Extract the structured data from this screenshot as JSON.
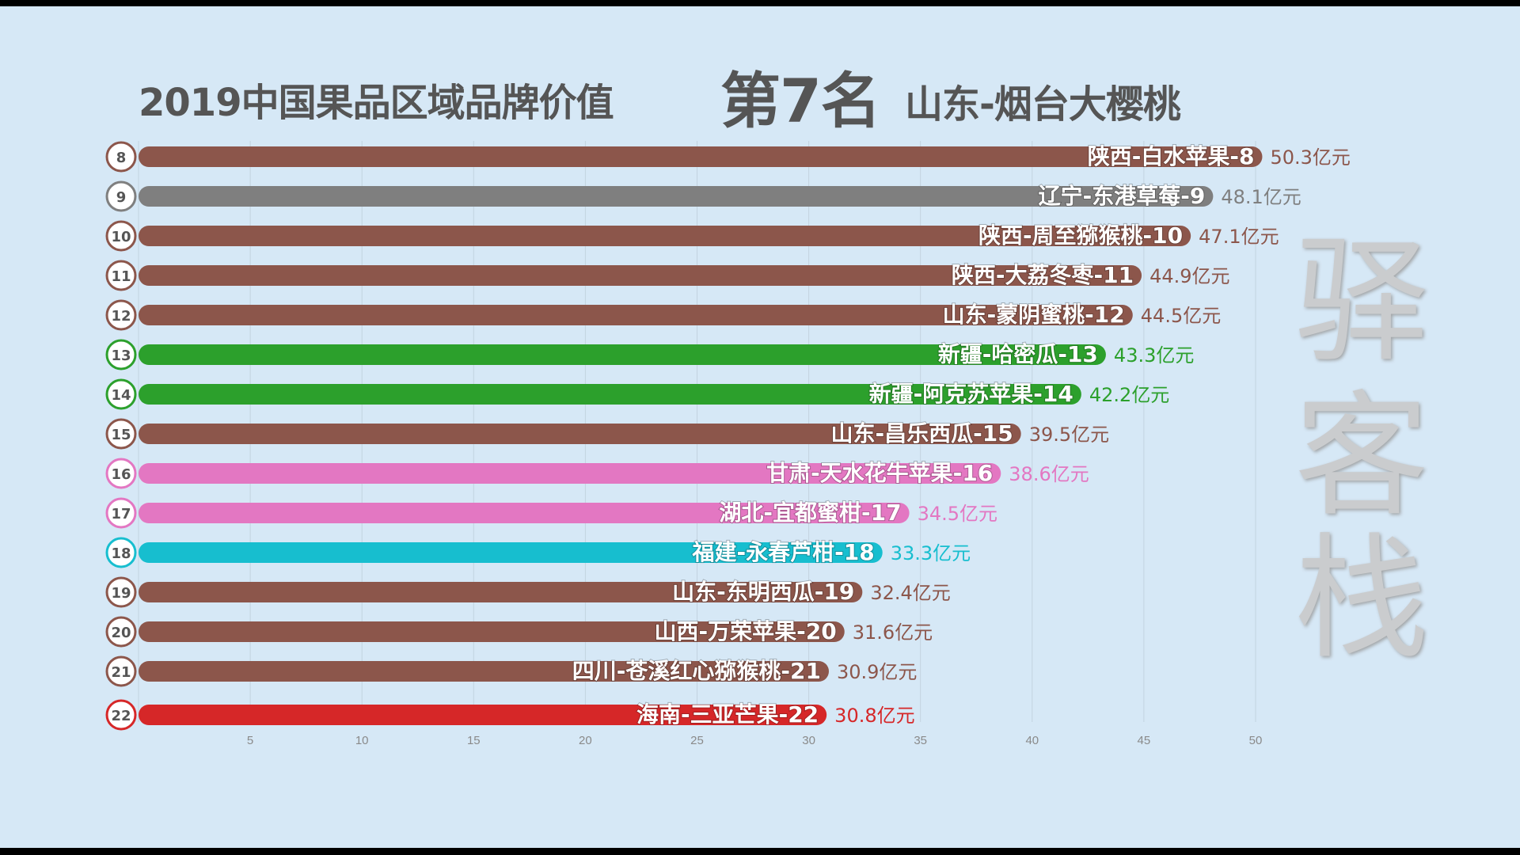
{
  "header": {
    "title": "2019中国果品区域品牌价值",
    "rank_label": "第7名",
    "rank_item": "山东-烟台大樱桃"
  },
  "watermark": [
    "驿",
    "客",
    "栈"
  ],
  "chart_data": {
    "type": "bar",
    "orientation": "horizontal",
    "unit": "亿元",
    "xlim": [
      0,
      52
    ],
    "xticks": [
      5,
      10,
      15,
      20,
      25,
      30,
      35,
      40,
      45,
      50
    ],
    "grid": true,
    "bars": [
      {
        "rank": 8,
        "label": "陕西-白水苹果-8",
        "value": 50.3,
        "value_label": "50.3亿元",
        "color": "#8c564b"
      },
      {
        "rank": 9,
        "label": "辽宁-东港草莓-9",
        "value": 48.1,
        "value_label": "48.1亿元",
        "color": "#7f7f7f"
      },
      {
        "rank": 10,
        "label": "陕西-周至猕猴桃-10",
        "value": 47.1,
        "value_label": "47.1亿元",
        "color": "#8c564b"
      },
      {
        "rank": 11,
        "label": "陕西-大荔冬枣-11",
        "value": 44.9,
        "value_label": "44.9亿元",
        "color": "#8c564b"
      },
      {
        "rank": 12,
        "label": "山东-蒙阴蜜桃-12",
        "value": 44.5,
        "value_label": "44.5亿元",
        "color": "#8c564b"
      },
      {
        "rank": 13,
        "label": "新疆-哈密瓜-13",
        "value": 43.3,
        "value_label": "43.3亿元",
        "color": "#2ca02c"
      },
      {
        "rank": 14,
        "label": "新疆-阿克苏苹果-14",
        "value": 42.2,
        "value_label": "42.2亿元",
        "color": "#2ca02c"
      },
      {
        "rank": 15,
        "label": "山东-昌乐西瓜-15",
        "value": 39.5,
        "value_label": "39.5亿元",
        "color": "#8c564b"
      },
      {
        "rank": 16,
        "label": "甘肃-天水花牛苹果-16",
        "value": 38.6,
        "value_label": "38.6亿元",
        "color": "#e377c2"
      },
      {
        "rank": 17,
        "label": "湖北-宜都蜜柑-17",
        "value": 34.5,
        "value_label": "34.5亿元",
        "color": "#e377c2"
      },
      {
        "rank": 18,
        "label": "福建-永春芦柑-18",
        "value": 33.3,
        "value_label": "33.3亿元",
        "color": "#17becf"
      },
      {
        "rank": 19,
        "label": "山东-东明西瓜-19",
        "value": 32.4,
        "value_label": "32.4亿元",
        "color": "#8c564b"
      },
      {
        "rank": 20,
        "label": "山西-万荣苹果-20",
        "value": 31.6,
        "value_label": "31.6亿元",
        "color": "#8c564b"
      },
      {
        "rank": 21,
        "label": "四川-苍溪红心猕猴桃-21",
        "value": 30.9,
        "value_label": "30.9亿元",
        "color": "#8c564b"
      },
      {
        "rank": 22,
        "label": "海南-三亚芒果-22",
        "value": 30.8,
        "value_label": "30.8亿元",
        "color": "#d62728"
      }
    ]
  }
}
